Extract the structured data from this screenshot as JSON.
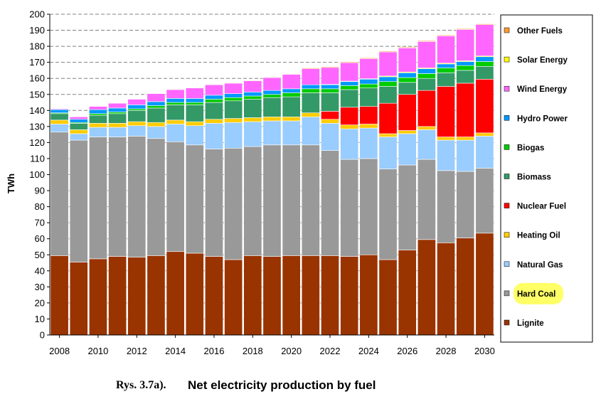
{
  "chart_data": {
    "type": "bar",
    "stacked": true,
    "ylabel": "TWh",
    "ylim": [
      0,
      200
    ],
    "yticks": [
      0,
      10,
      20,
      30,
      40,
      50,
      60,
      70,
      80,
      90,
      100,
      110,
      120,
      130,
      140,
      150,
      160,
      170,
      180,
      190,
      200
    ],
    "grid": "dashed horizontal at major ticks",
    "legend_position": "right",
    "categories": [
      "2008",
      "2009",
      "2010",
      "2011",
      "2012",
      "2013",
      "2014",
      "2015",
      "2016",
      "2017",
      "2018",
      "2019",
      "2020",
      "2021",
      "2022",
      "2023",
      "2024",
      "2025",
      "2026",
      "2027",
      "2028",
      "2029",
      "2030"
    ],
    "xtick_labels": [
      "2008",
      "2010",
      "2012",
      "2014",
      "2016",
      "2018",
      "2020",
      "2022",
      "2024",
      "2026",
      "2028",
      "2030"
    ],
    "series": [
      {
        "name": "Lignite",
        "color": "#993300",
        "values": [
          49.5,
          45.5,
          47.5,
          49,
          48.5,
          49.5,
          52,
          51,
          49,
          47,
          49.5,
          49,
          49.5,
          49.5,
          49.5,
          49,
          50,
          47,
          53,
          59.5,
          57.5,
          60.5,
          63.5
        ]
      },
      {
        "name": "Hard Coal",
        "color": "#999999",
        "values": [
          77,
          76,
          76,
          74.5,
          75.5,
          73,
          68.5,
          67.5,
          67,
          69.5,
          68,
          69.5,
          69,
          69,
          65.5,
          60.5,
          60,
          56.5,
          53,
          50,
          45,
          41.5,
          40.5
        ]
      },
      {
        "name": "Natural Gas",
        "color": "#99ccff",
        "values": [
          5,
          4,
          6,
          6,
          6.5,
          7.5,
          11,
          12,
          16,
          16,
          15.5,
          15,
          15,
          17.5,
          17,
          19,
          19,
          20,
          19.5,
          18.5,
          19,
          19.5,
          20
        ]
      },
      {
        "name": "Heating Oil",
        "color": "#ffcc00",
        "values": [
          2.5,
          2.5,
          2.5,
          2.5,
          2.5,
          2.5,
          2.5,
          2.5,
          2.5,
          2.5,
          2.5,
          2.5,
          2.5,
          2.5,
          2.5,
          2.5,
          2.5,
          2,
          2,
          2,
          2,
          2,
          2
        ]
      },
      {
        "name": "Nuclear Fuel",
        "color": "#ff0000",
        "values": [
          0,
          0,
          0,
          0,
          0,
          0,
          0,
          0,
          0,
          0,
          0,
          0,
          0,
          0,
          5,
          11,
          11,
          19,
          22.5,
          22.5,
          31.5,
          33.5,
          33.5
        ]
      },
      {
        "name": "Biomass",
        "color": "#339966",
        "values": [
          4,
          4,
          5,
          6,
          7,
          9,
          9.5,
          10.5,
          10.5,
          11,
          11.5,
          12,
          12.5,
          12.5,
          11.5,
          11,
          11.5,
          10.5,
          7.5,
          7.5,
          8.5,
          8,
          8
        ]
      },
      {
        "name": "Biogas",
        "color": "#00cc00",
        "values": [
          0.5,
          0.5,
          1,
          1,
          1,
          1.5,
          1.5,
          1.5,
          2,
          2,
          2,
          2,
          2.5,
          2.5,
          2.5,
          2.5,
          2.5,
          3,
          3,
          3,
          3,
          3,
          3
        ]
      },
      {
        "name": "Hydro Power",
        "color": "#0099ff",
        "values": [
          2,
          2,
          2.5,
          2.5,
          2.5,
          2.5,
          2.5,
          2.5,
          2.5,
          2.5,
          2.5,
          2.5,
          2.5,
          2.5,
          2.5,
          2.5,
          3,
          3,
          3,
          3,
          2.5,
          2.5,
          3
        ]
      },
      {
        "name": "Solar Energy",
        "color": "#ffff00",
        "values": [
          0,
          0,
          0,
          0,
          0,
          0,
          0,
          0,
          0,
          0,
          0,
          0,
          0,
          0,
          0.3,
          0.3,
          0.3,
          0.5,
          0.5,
          0.5,
          0.5,
          0.5,
          0.5
        ]
      },
      {
        "name": "Wind Energy",
        "color": "#ff66ff",
        "values": [
          0.5,
          1.5,
          2,
          3,
          3.5,
          5,
          5.5,
          6.5,
          6.5,
          6.5,
          7,
          8,
          9,
          10,
          10.5,
          11.5,
          12.5,
          15,
          15,
          16.5,
          17,
          19.5,
          19.5
        ]
      },
      {
        "name": "Other Fuels",
        "color": "#ff9933",
        "values": [
          0,
          0,
          0,
          0,
          0,
          0,
          0.3,
          0.3,
          0.3,
          0.3,
          0.3,
          0.3,
          0.3,
          0.5,
          0.5,
          0.5,
          0.5,
          0.5,
          0.5,
          0.5,
          0.5,
          0.5,
          0.5
        ]
      }
    ],
    "legend_order": [
      "Other Fuels",
      "Solar Energy",
      "Wind Energy",
      "Hydro Power",
      "Biogas",
      "Biomass",
      "Nuclear Fuel",
      "Heating Oil",
      "Natural Gas",
      "Hard Coal",
      "Lignite"
    ],
    "legend_highlight": {
      "item": "Hard Coal",
      "color": "#ffff66"
    }
  },
  "caption": {
    "prefix": "Rys. 3.7a).",
    "title": "Net electricity production by fuel"
  }
}
